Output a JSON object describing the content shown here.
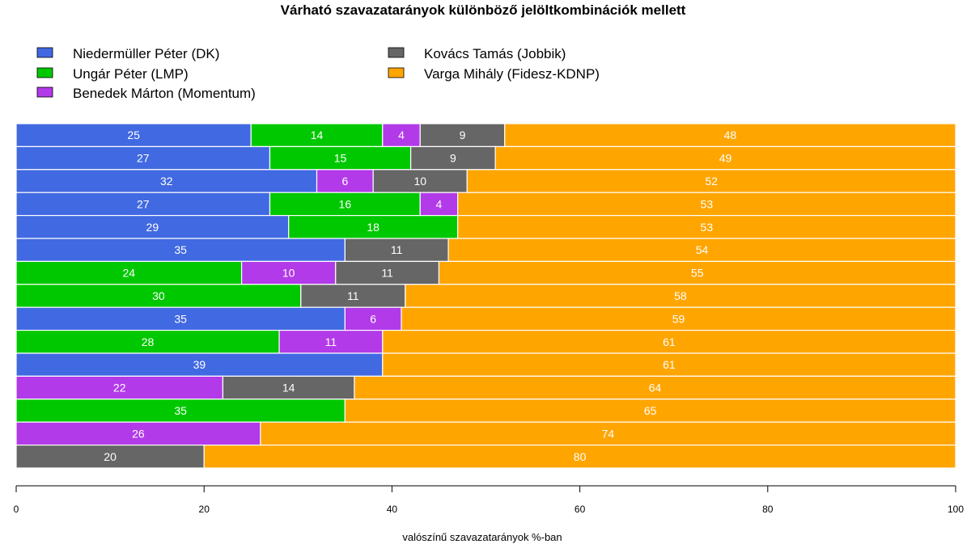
{
  "chart_data": {
    "type": "bar",
    "orientation": "horizontal",
    "stacked": true,
    "title": "Várható szavazatarányok különböző jelöltkombinációk mellett",
    "xlabel": "valószínű szavazatarányok %-ban",
    "ylabel": "",
    "xlim": [
      0,
      100
    ],
    "xticks": [
      0,
      20,
      40,
      60,
      80,
      100
    ],
    "grid": false,
    "legend_position": "top-left",
    "series": [
      {
        "name": "Niedermüller Péter (DK)",
        "color": "#4169e1",
        "values": [
          25,
          27,
          32,
          27,
          29,
          35,
          null,
          null,
          35,
          null,
          39,
          null,
          null,
          null,
          null
        ]
      },
      {
        "name": "Ungár Péter (LMP)",
        "color": "#00c800",
        "values": [
          14,
          15,
          null,
          16,
          18,
          null,
          24,
          30,
          null,
          28,
          null,
          null,
          35,
          null,
          null
        ]
      },
      {
        "name": "Benedek Márton (Momentum)",
        "color": "#b23ae8",
        "values": [
          4,
          null,
          6,
          4,
          null,
          null,
          10,
          null,
          6,
          11,
          null,
          22,
          null,
          26,
          null
        ]
      },
      {
        "name": "Kovács Tamás (Jobbik)",
        "color": "#666666",
        "values": [
          9,
          9,
          10,
          null,
          null,
          11,
          11,
          11,
          null,
          null,
          null,
          14,
          null,
          null,
          20
        ]
      },
      {
        "name": "Varga Mihály (Fidesz-KDNP)",
        "color": "#ffa500",
        "values": [
          48,
          49,
          52,
          53,
          53,
          54,
          55,
          58,
          59,
          61,
          61,
          64,
          65,
          74,
          80
        ]
      }
    ],
    "legend_columns": [
      [
        0,
        1,
        2
      ],
      [
        3,
        4
      ]
    ],
    "label_color": "#ffffff"
  }
}
